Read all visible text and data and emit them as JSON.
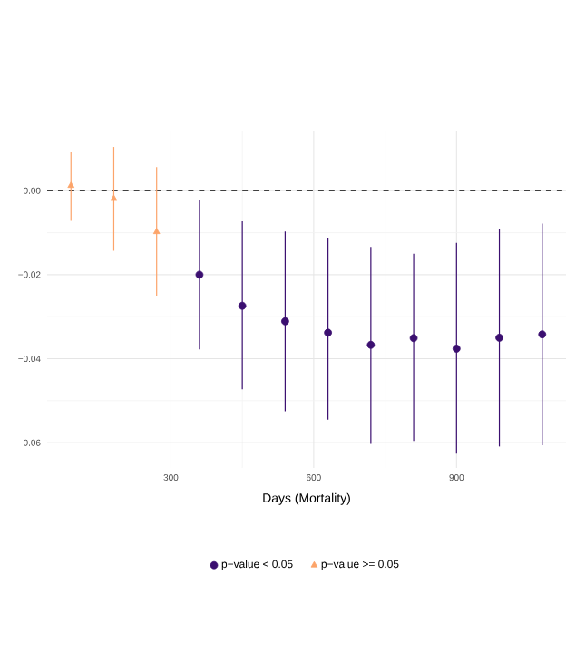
{
  "chart_data": {
    "type": "scatter",
    "xlabel": "Days (Mortality)",
    "xlim": [
      40,
      1130
    ],
    "ylim": [
      -0.066,
      0.0143
    ],
    "xticks": [
      300,
      600,
      900
    ],
    "yticks": [
      {
        "value": 0,
        "label": "0.00"
      },
      {
        "value": -0.02,
        "label": "−0.02"
      },
      {
        "value": -0.04,
        "label": "−0.04"
      },
      {
        "value": -0.06,
        "label": "−0.06"
      }
    ],
    "grid": true,
    "legend": "bottom",
    "ref_lines": [
      {
        "axis": "y",
        "value": 0,
        "line_style": "dashed",
        "color": "#000000"
      }
    ],
    "series": [
      {
        "name": "p−value < 0.05",
        "color": "#3b0f70",
        "marker": "circle",
        "x": [
          360,
          450,
          540,
          630,
          720,
          810,
          900,
          990,
          1080
        ],
        "values": [
          -0.02,
          -0.0274,
          -0.0311,
          -0.0338,
          -0.0367,
          -0.0351,
          -0.0376,
          -0.035,
          -0.0342
        ],
        "errors": [
          [
            -0.0378,
            -0.0022
          ],
          [
            -0.0473,
            -0.0073
          ],
          [
            -0.0525,
            -0.0097
          ],
          [
            -0.0545,
            -0.0112
          ],
          [
            -0.0603,
            -0.0134
          ],
          [
            -0.0596,
            -0.015
          ],
          [
            -0.0626,
            -0.0124
          ],
          [
            -0.0609,
            -0.0092
          ],
          [
            -0.0606,
            -0.0078
          ]
        ]
      },
      {
        "name": "p−value >= 0.05",
        "color": "#fca46a",
        "marker": "triangle",
        "x": [
          90,
          180,
          270
        ],
        "values": [
          0.0012,
          -0.0019,
          -0.0098
        ],
        "errors": [
          [
            -0.0072,
            0.0091
          ],
          [
            -0.0143,
            0.0104
          ],
          [
            -0.025,
            0.0056
          ]
        ]
      }
    ]
  }
}
